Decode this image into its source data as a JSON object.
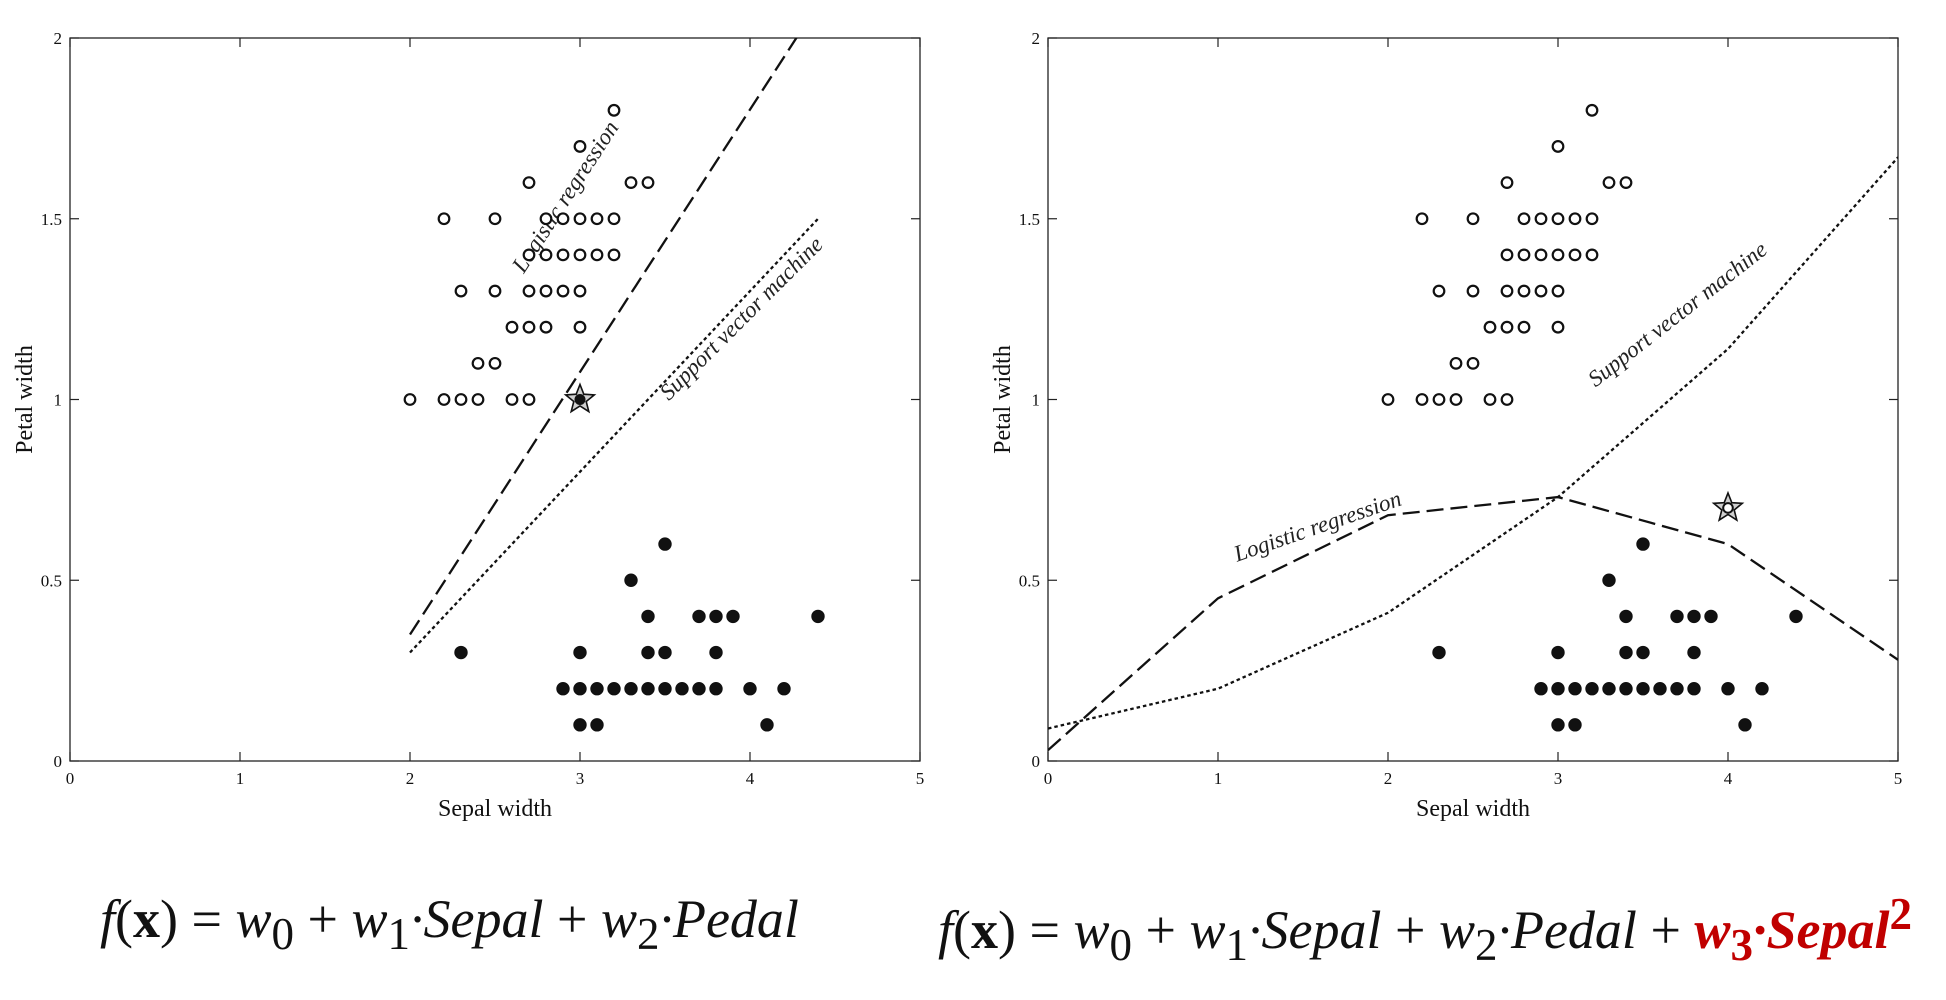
{
  "chart_data": [
    {
      "type": "scatter",
      "xlabel": "Sepal width",
      "ylabel": "Petal width",
      "xlim": [
        0,
        5
      ],
      "ylim": [
        0,
        2
      ],
      "x_ticks": [
        "0",
        "1",
        "2",
        "3",
        "4",
        "5"
      ],
      "y_ticks": [
        "0",
        "0.5",
        "1",
        "1.5",
        "2"
      ],
      "series": [
        {
          "marker": "open-circle",
          "points": [
            [
              2.0,
              1.0
            ],
            [
              2.2,
              1.0
            ],
            [
              2.3,
              1.0
            ],
            [
              2.4,
              1.0
            ],
            [
              2.6,
              1.0
            ],
            [
              2.7,
              1.0
            ],
            [
              2.4,
              1.1
            ],
            [
              2.5,
              1.1
            ],
            [
              2.6,
              1.2
            ],
            [
              2.7,
              1.2
            ],
            [
              2.8,
              1.2
            ],
            [
              3.0,
              1.2
            ],
            [
              2.3,
              1.3
            ],
            [
              2.5,
              1.3
            ],
            [
              2.7,
              1.3
            ],
            [
              2.8,
              1.3
            ],
            [
              2.9,
              1.3
            ],
            [
              3.0,
              1.3
            ],
            [
              2.7,
              1.4
            ],
            [
              2.8,
              1.4
            ],
            [
              2.9,
              1.4
            ],
            [
              3.0,
              1.4
            ],
            [
              3.1,
              1.4
            ],
            [
              3.2,
              1.4
            ],
            [
              2.2,
              1.5
            ],
            [
              2.5,
              1.5
            ],
            [
              2.8,
              1.5
            ],
            [
              2.9,
              1.5
            ],
            [
              3.0,
              1.5
            ],
            [
              3.1,
              1.5
            ],
            [
              3.2,
              1.5
            ],
            [
              2.7,
              1.6
            ],
            [
              3.3,
              1.6
            ],
            [
              3.4,
              1.6
            ],
            [
              3.0,
              1.7
            ],
            [
              3.2,
              1.8
            ]
          ]
        },
        {
          "marker": "filled-circle",
          "points": [
            [
              3.0,
              0.1
            ],
            [
              3.1,
              0.1
            ],
            [
              4.1,
              0.1
            ],
            [
              2.9,
              0.2
            ],
            [
              3.0,
              0.2
            ],
            [
              3.1,
              0.2
            ],
            [
              3.2,
              0.2
            ],
            [
              3.3,
              0.2
            ],
            [
              3.4,
              0.2
            ],
            [
              3.5,
              0.2
            ],
            [
              3.6,
              0.2
            ],
            [
              3.7,
              0.2
            ],
            [
              3.8,
              0.2
            ],
            [
              4.0,
              0.2
            ],
            [
              4.2,
              0.2
            ],
            [
              2.3,
              0.3
            ],
            [
              3.0,
              0.3
            ],
            [
              3.4,
              0.3
            ],
            [
              3.5,
              0.3
            ],
            [
              3.8,
              0.3
            ],
            [
              3.4,
              0.4
            ],
            [
              3.7,
              0.4
            ],
            [
              3.8,
              0.4
            ],
            [
              3.9,
              0.4
            ],
            [
              4.4,
              0.4
            ],
            [
              3.3,
              0.5
            ],
            [
              3.5,
              0.6
            ]
          ]
        }
      ],
      "highlight": {
        "x": 3.0,
        "y": 1.0,
        "marker": "star-filled"
      },
      "lines": [
        {
          "label": "Logistic regression",
          "style": "dashed",
          "points": [
            [
              2.0,
              0.35
            ],
            [
              4.3,
              2.02
            ]
          ]
        },
        {
          "label": "Support vector machine",
          "style": "dotted",
          "points": [
            [
              2.0,
              0.3
            ],
            [
              4.4,
              1.5
            ]
          ]
        }
      ]
    },
    {
      "type": "scatter",
      "xlabel": "Sepal width",
      "ylabel": "Petal width",
      "xlim": [
        0,
        5
      ],
      "ylim": [
        0,
        2
      ],
      "x_ticks": [
        "0",
        "1",
        "2",
        "3",
        "4",
        "5"
      ],
      "y_ticks": [
        "0",
        "0.5",
        "1",
        "1.5",
        "2"
      ],
      "series": [
        {
          "marker": "open-circle",
          "points": [
            [
              2.0,
              1.0
            ],
            [
              2.2,
              1.0
            ],
            [
              2.3,
              1.0
            ],
            [
              2.4,
              1.0
            ],
            [
              2.6,
              1.0
            ],
            [
              2.7,
              1.0
            ],
            [
              2.4,
              1.1
            ],
            [
              2.5,
              1.1
            ],
            [
              2.6,
              1.2
            ],
            [
              2.7,
              1.2
            ],
            [
              2.8,
              1.2
            ],
            [
              3.0,
              1.2
            ],
            [
              2.3,
              1.3
            ],
            [
              2.5,
              1.3
            ],
            [
              2.7,
              1.3
            ],
            [
              2.8,
              1.3
            ],
            [
              2.9,
              1.3
            ],
            [
              3.0,
              1.3
            ],
            [
              2.7,
              1.4
            ],
            [
              2.8,
              1.4
            ],
            [
              2.9,
              1.4
            ],
            [
              3.0,
              1.4
            ],
            [
              3.1,
              1.4
            ],
            [
              3.2,
              1.4
            ],
            [
              2.2,
              1.5
            ],
            [
              2.5,
              1.5
            ],
            [
              2.8,
              1.5
            ],
            [
              2.9,
              1.5
            ],
            [
              3.0,
              1.5
            ],
            [
              3.1,
              1.5
            ],
            [
              3.2,
              1.5
            ],
            [
              2.7,
              1.6
            ],
            [
              3.3,
              1.6
            ],
            [
              3.4,
              1.6
            ],
            [
              3.0,
              1.7
            ],
            [
              3.2,
              1.8
            ]
          ]
        },
        {
          "marker": "filled-circle",
          "points": [
            [
              3.0,
              0.1
            ],
            [
              3.1,
              0.1
            ],
            [
              4.1,
              0.1
            ],
            [
              2.9,
              0.2
            ],
            [
              3.0,
              0.2
            ],
            [
              3.1,
              0.2
            ],
            [
              3.2,
              0.2
            ],
            [
              3.3,
              0.2
            ],
            [
              3.4,
              0.2
            ],
            [
              3.5,
              0.2
            ],
            [
              3.6,
              0.2
            ],
            [
              3.7,
              0.2
            ],
            [
              3.8,
              0.2
            ],
            [
              4.0,
              0.2
            ],
            [
              4.2,
              0.2
            ],
            [
              2.3,
              0.3
            ],
            [
              3.0,
              0.3
            ],
            [
              3.4,
              0.3
            ],
            [
              3.5,
              0.3
            ],
            [
              3.8,
              0.3
            ],
            [
              3.4,
              0.4
            ],
            [
              3.7,
              0.4
            ],
            [
              3.8,
              0.4
            ],
            [
              3.9,
              0.4
            ],
            [
              4.4,
              0.4
            ],
            [
              3.3,
              0.5
            ],
            [
              3.5,
              0.6
            ]
          ]
        }
      ],
      "highlight": {
        "x": 4.0,
        "y": 0.7,
        "marker": "star-open"
      },
      "lines": [
        {
          "label": "Logistic regression",
          "style": "dashed",
          "points": [
            [
              0,
              0.03
            ],
            [
              1,
              0.45
            ],
            [
              2,
              0.68
            ],
            [
              3,
              0.73
            ],
            [
              4,
              0.6
            ],
            [
              5,
              0.28
            ]
          ]
        },
        {
          "label": "Support vector machine",
          "style": "dotted",
          "points": [
            [
              0,
              0.09
            ],
            [
              1,
              0.2
            ],
            [
              2,
              0.41
            ],
            [
              3,
              0.73
            ],
            [
              4,
              1.14
            ],
            [
              5,
              1.67
            ]
          ]
        }
      ]
    }
  ],
  "formulas": [
    {
      "f": "f",
      "x": "x",
      "eq": " = ",
      "w0": "w",
      "s0": "0",
      "plus1": " + ",
      "w1": "w",
      "s1": "1",
      "t1": "·Sepal",
      "plus2": " + ",
      "w2": "w",
      "s2": "2",
      "t2": "·Pedal"
    },
    {
      "f": "f",
      "x": "x",
      "eq": " = ",
      "w0": "w",
      "s0": "0",
      "plus1": " + ",
      "w1": "w",
      "s1": "1",
      "t1": "·Sepal",
      "plus2": " + ",
      "w2": "w",
      "s2": "2",
      "t2": "·Pedal",
      "plus3": " + ",
      "w3": "w",
      "s3": "3",
      "t3": "·Sepal",
      "sup3": "2"
    }
  ],
  "colors": {
    "ink": "#111111",
    "accent": "#c00000"
  }
}
